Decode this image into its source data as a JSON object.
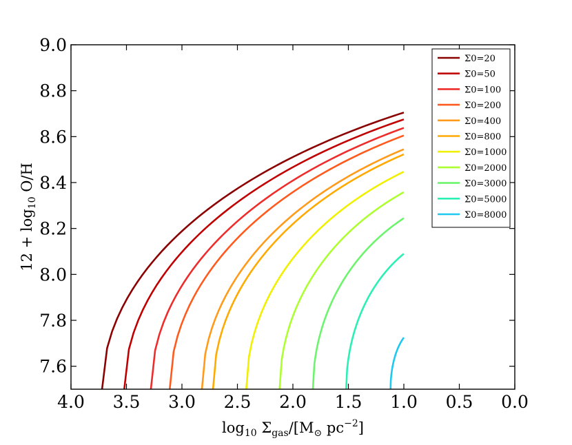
{
  "chart_data": {
    "type": "line",
    "title": "",
    "xlabel": "log10 Σgas/[M⊙ pc−2]",
    "ylabel": "12 + log10 O/H",
    "xlim": [
      4.0,
      0.0
    ],
    "ylim": [
      7.5,
      9.0
    ],
    "x_reversed": true,
    "xticks": [
      "4.0",
      "3.5",
      "3.0",
      "2.5",
      "2.0",
      "1.5",
      "1.0",
      "0.5",
      "0.0"
    ],
    "yticks": [
      "7.6",
      "7.8",
      "8.0",
      "8.2",
      "8.4",
      "8.6",
      "8.8",
      "9.0"
    ],
    "grid": false,
    "legend_position": "top-right",
    "series": [
      {
        "name": "Σ0=20",
        "color": "#8b0000",
        "x0": 3.72,
        "x_end": 1.0,
        "y_end": 8.705
      },
      {
        "name": "Σ0=50",
        "color": "#c00000",
        "x0": 3.52,
        "x_end": 1.0,
        "y_end": 8.675
      },
      {
        "name": "Σ0=100",
        "color": "#ee2c2c",
        "x0": 3.28,
        "x_end": 1.0,
        "y_end": 8.638
      },
      {
        "name": "Σ0=200",
        "color": "#ff5a1e",
        "x0": 3.11,
        "x_end": 1.0,
        "y_end": 8.605
      },
      {
        "name": "Σ0=400",
        "color": "#ff9a1a",
        "x0": 2.82,
        "x_end": 1.0,
        "y_end": 8.545
      },
      {
        "name": "Σ0=800",
        "color": "#ffaa00",
        "x0": 2.72,
        "x_end": 1.0,
        "y_end": 8.523
      },
      {
        "name": "Σ0=1000",
        "color": "#f0f000",
        "x0": 2.42,
        "x_end": 1.0,
        "y_end": 8.447
      },
      {
        "name": "Σ0=2000",
        "color": "#adff2f",
        "x0": 2.12,
        "x_end": 1.0,
        "y_end": 8.358
      },
      {
        "name": "Σ0=3000",
        "color": "#6cf56c",
        "x0": 1.82,
        "x_end": 1.0,
        "y_end": 8.245
      },
      {
        "name": "Σ0=5000",
        "color": "#2af0b4",
        "x0": 1.52,
        "x_end": 1.0,
        "y_end": 8.09
      },
      {
        "name": "Σ0=8000",
        "color": "#1ec8f0",
        "x0": 1.12,
        "x_end": 1.0,
        "y_end": 7.725
      }
    ]
  }
}
